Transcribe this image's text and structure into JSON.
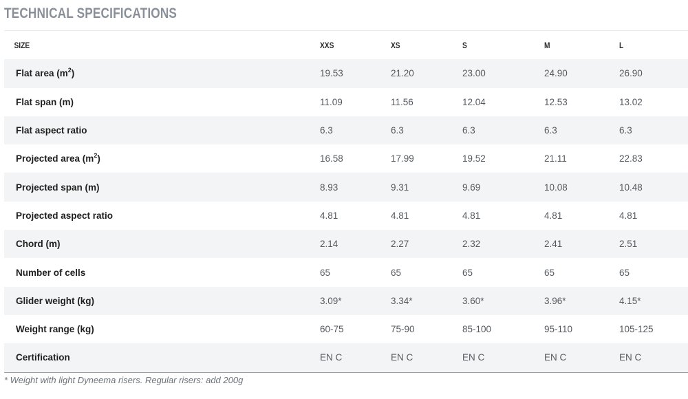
{
  "title": "TECHNICAL SPECIFICATIONS",
  "header": {
    "label": "SIZE",
    "sizes": [
      "XXS",
      "XS",
      "S",
      "M",
      "L"
    ]
  },
  "rows": [
    {
      "label": "Flat area (m",
      "sup": "2",
      "suffix": ")",
      "values": [
        "19.53",
        "21.20",
        "23.00",
        "24.90",
        "26.90"
      ]
    },
    {
      "label": "Flat span (m)",
      "values": [
        "11.09",
        "11.56",
        "12.04",
        "12.53",
        "13.02"
      ]
    },
    {
      "label": "Flat aspect ratio",
      "values": [
        "6.3",
        "6.3",
        "6.3",
        "6.3",
        "6.3"
      ]
    },
    {
      "label": "Projected area (m",
      "sup": "2",
      "suffix": ")",
      "values": [
        "16.58",
        "17.99",
        "19.52",
        "21.11",
        "22.83"
      ]
    },
    {
      "label": "Projected span (m)",
      "values": [
        "8.93",
        "9.31",
        "9.69",
        "10.08",
        "10.48"
      ]
    },
    {
      "label": "Projected aspect ratio",
      "values": [
        "4.81",
        "4.81",
        "4.81",
        "4.81",
        "4.81"
      ]
    },
    {
      "label": "Chord (m)",
      "values": [
        "2.14",
        "2.27",
        "2.32",
        "2.41",
        "2.51"
      ]
    },
    {
      "label": "Number of cells",
      "values": [
        "65",
        "65",
        "65",
        "65",
        "65"
      ]
    },
    {
      "label": "Glider weight (kg)",
      "values": [
        "3.09*",
        "3.34*",
        "3.60*",
        "3.96*",
        "4.15*"
      ]
    },
    {
      "label": "Weight range (kg)",
      "values": [
        "60-75",
        "75-90",
        "85-100",
        "95-110",
        "105-125"
      ]
    },
    {
      "label": "Certification",
      "values": [
        "EN C",
        "EN C",
        "EN C",
        "EN C",
        "EN C"
      ]
    }
  ],
  "footnote": "* Weight with light Dyneema risers. Regular risers: add 200g"
}
